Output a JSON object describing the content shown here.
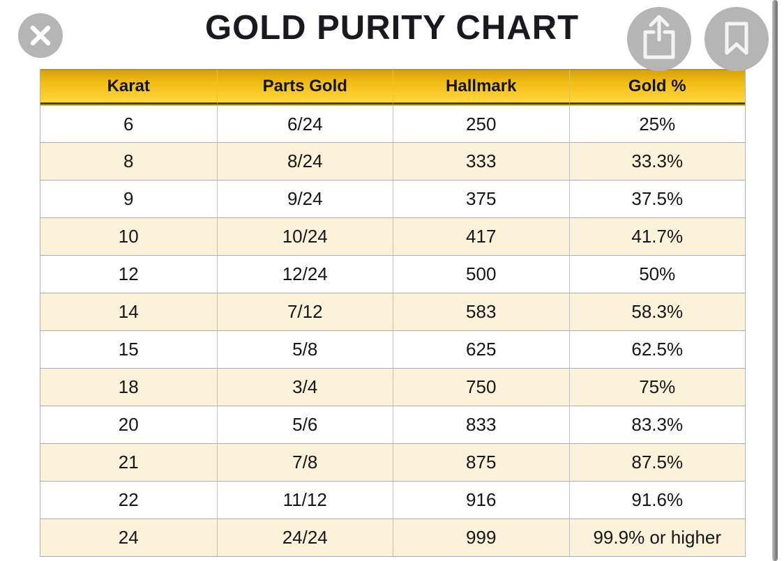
{
  "title": "GOLD PURITY CHART",
  "toolbar": {
    "close_button": {
      "icon": "close-x"
    },
    "share_button": {
      "icon": "share-up-arrow"
    },
    "bookmark_button": {
      "icon": "bookmark-ribbon"
    }
  },
  "table": {
    "columns": [
      "Karat",
      "Parts Gold",
      "Hallmark",
      "Gold %"
    ],
    "rows": [
      [
        "6",
        "6/24",
        "250",
        "25%"
      ],
      [
        "8",
        "8/24",
        "333",
        "33.3%"
      ],
      [
        "9",
        "9/24",
        "375",
        "37.5%"
      ],
      [
        "10",
        "10/24",
        "417",
        "41.7%"
      ],
      [
        "12",
        "12/24",
        "500",
        "50%"
      ],
      [
        "14",
        "7/12",
        "583",
        "58.3%"
      ],
      [
        "15",
        "5/8",
        "625",
        "62.5%"
      ],
      [
        "18",
        "3/4",
        "750",
        "75%"
      ],
      [
        "20",
        "5/6",
        "833",
        "83.3%"
      ],
      [
        "21",
        "7/8",
        "875",
        "87.5%"
      ],
      [
        "22",
        "11/12",
        "916",
        "91.6%"
      ],
      [
        "24",
        "24/24",
        "999",
        "99.9% or higher"
      ]
    ]
  },
  "colors": {
    "header_gold_top": "#d8a30d",
    "header_gold_bottom": "#ffd63e",
    "header_dark_border": "#4a4208",
    "row_cream": "#fbf3d9",
    "row_white": "#ffffff",
    "grid_line": "#ababab",
    "icon_circle_gray": "#b5b5b5",
    "title_color": "#191920"
  }
}
